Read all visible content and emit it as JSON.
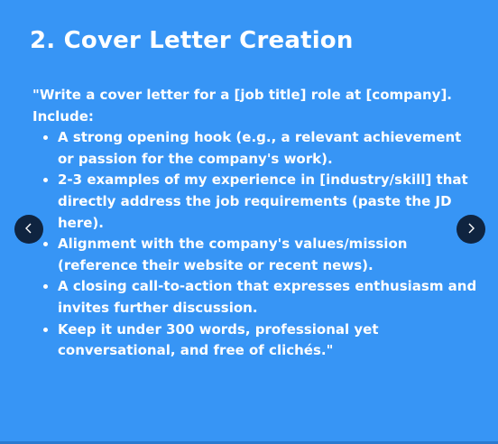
{
  "slide": {
    "title": "2. Cover Letter Creation",
    "intro": "\"Write a cover letter for a [job title] role at [company]. Include:",
    "bullets": [
      "A strong opening hook (e.g., a relevant achievement or passion for the company's work).",
      "2-3 examples of my experience in [industry/skill] that directly address the job requirements (paste the JD here).",
      "Alignment with the company's values/mission (reference their website or recent news).",
      "A closing call-to-action that expresses enthusiasm and invites further discussion.",
      "Keep it under 300 words, professional yet conversational, and free of clichés.\""
    ]
  },
  "navigation": {
    "prev_icon": "chevron-left-icon",
    "next_icon": "chevron-right-icon"
  },
  "colors": {
    "background": "#3795f5",
    "text": "#ffffff",
    "nav_button": "#0f2440"
  }
}
